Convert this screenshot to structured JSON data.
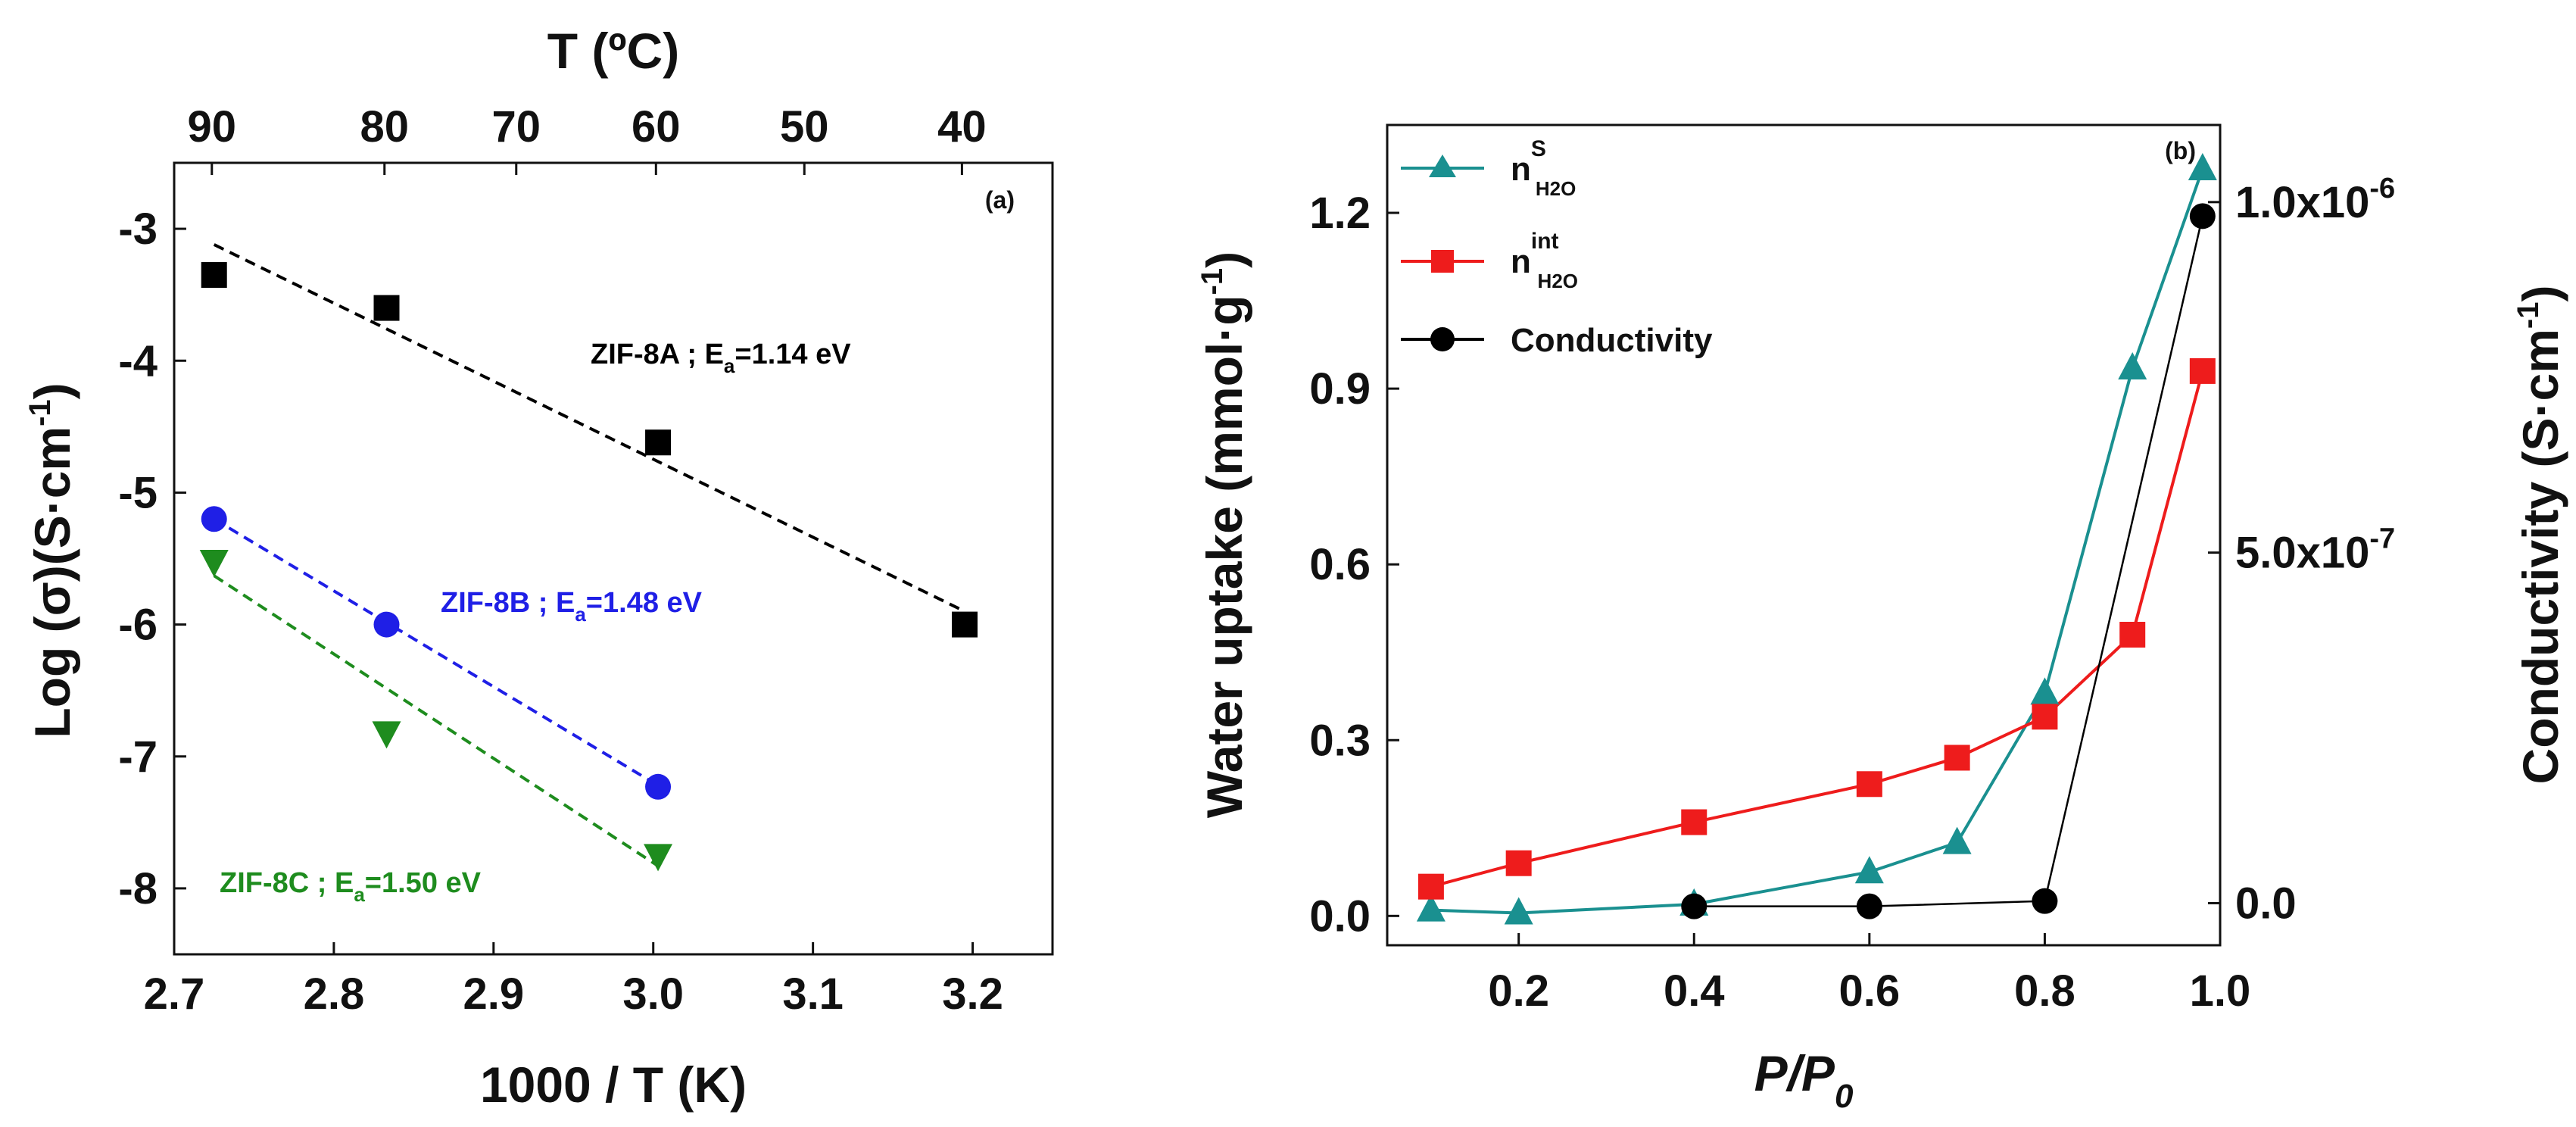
{
  "chart_data": [
    {
      "type": "scatter",
      "panel_label": "(a)",
      "xlabel": "1000 / T (K)",
      "ylabel": "Log (σ)(S·cm",
      "ylabel_sup": "-1",
      "ylabel_close": ")",
      "top_xlabel": "T (ºC)",
      "xlim": [
        2.7,
        3.25
      ],
      "ylim": [
        -8.5,
        -2.5
      ],
      "xticks": [
        2.7,
        2.8,
        2.9,
        3.0,
        3.1,
        3.2
      ],
      "xtick_labels": [
        "2.7",
        "2.8",
        "2.9",
        "3.0",
        "3.1",
        "3.2"
      ],
      "yticks": [
        -3,
        -4,
        -5,
        -6,
        -7,
        -8
      ],
      "ytick_labels": [
        "-3",
        "-4",
        "-5",
        "-6",
        "-7",
        "-8"
      ],
      "top_ticks": [
        {
          "label": "90",
          "x": 2.7236
        },
        {
          "label": "80",
          "x": 2.8317
        },
        {
          "label": "70",
          "x": 2.9142
        },
        {
          "label": "60",
          "x": 3.0017
        },
        {
          "label": "50",
          "x": 3.0946
        },
        {
          "label": "40",
          "x": 3.1933
        }
      ],
      "series": [
        {
          "name": "ZIF-8A",
          "label": "ZIF-8A ; E",
          "label_sub": "a",
          "label_value": "=1.14 eV",
          "color": "#000000",
          "marker": "square",
          "x": [
            2.725,
            2.833,
            3.003,
            3.195
          ],
          "y": [
            -3.35,
            -3.6,
            -4.62,
            -6.0
          ],
          "fit": {
            "x": [
              2.725,
              3.195
            ],
            "y": [
              -3.12,
              -5.9
            ]
          }
        },
        {
          "name": "ZIF-8B",
          "label": "ZIF-8B ; E",
          "label_sub": "a",
          "label_value": "=1.48 eV",
          "color": "#1f1fe6",
          "marker": "circle",
          "x": [
            2.725,
            2.833,
            3.003
          ],
          "y": [
            -5.2,
            -6.0,
            -7.23
          ],
          "fit": {
            "x": [
              2.725,
              3.003
            ],
            "y": [
              -5.2,
              -7.22
            ]
          }
        },
        {
          "name": "ZIF-8C",
          "label": "ZIF-8C ; E",
          "label_sub": "a",
          "label_value": "=1.50 eV",
          "color": "#1e8c1e",
          "marker": "triangle-down",
          "x": [
            2.725,
            2.833,
            3.003
          ],
          "y": [
            -5.52,
            -6.82,
            -7.75
          ],
          "fit": {
            "x": [
              2.725,
              3.003
            ],
            "y": [
              -5.63,
              -7.83
            ]
          }
        }
      ]
    },
    {
      "type": "line",
      "panel_label": "(b)",
      "xlabel": "P/P",
      "xlabel_sub": "0",
      "ylabel": "Water uptake (mmol·g",
      "ylabel_sup": "-1",
      "ylabel_close": ")",
      "y2label": "Conductivity (S·cm",
      "y2label_sup": "-1",
      "y2label_close": ")",
      "xlim": [
        0.05,
        1.0
      ],
      "ylim": [
        -0.05,
        1.35
      ],
      "y2lim": [
        -6e-08,
        1.11e-06
      ],
      "xticks": [
        0.2,
        0.4,
        0.6,
        0.8,
        1.0
      ],
      "xtick_labels": [
        "0.2",
        "0.4",
        "0.6",
        "0.8",
        "1.0"
      ],
      "yticks": [
        0.0,
        0.3,
        0.6,
        0.9,
        1.2
      ],
      "ytick_labels": [
        "0.0",
        "0.3",
        "0.6",
        "0.9",
        "1.2"
      ],
      "y2ticks": [
        {
          "value": 0.0,
          "base": "0.0",
          "exp": ""
        },
        {
          "value": 5e-07,
          "base": "5.0x10",
          "exp": "-7"
        },
        {
          "value": 1e-06,
          "base": "1.0x10",
          "exp": "-6"
        }
      ],
      "series": [
        {
          "name": "n_H2O_S",
          "legend_base": "n",
          "legend_sup": "S",
          "legend_sub": "H2O",
          "color": "#1a9090",
          "marker": "triangle-up",
          "axis": "left",
          "x": [
            0.1,
            0.2,
            0.4,
            0.6,
            0.7,
            0.8,
            0.9,
            0.98
          ],
          "y": [
            0.01,
            0.005,
            0.02,
            0.075,
            0.125,
            0.38,
            0.935,
            1.275
          ]
        },
        {
          "name": "n_H2O_int",
          "legend_base": "n",
          "legend_sup": "int",
          "legend_sub": "H2O",
          "color": "#ee1c1c",
          "marker": "square",
          "axis": "left",
          "x": [
            0.1,
            0.2,
            0.4,
            0.6,
            0.7,
            0.8,
            0.9,
            0.98
          ],
          "y": [
            0.05,
            0.09,
            0.16,
            0.225,
            0.27,
            0.34,
            0.48,
            0.93
          ]
        },
        {
          "name": "Conductivity",
          "legend_base": "Conductivity",
          "legend_sup": "",
          "legend_sub": "",
          "color": "#000000",
          "marker": "circle",
          "axis": "right",
          "x": [
            0.4,
            0.6,
            0.8,
            0.98
          ],
          "y": [
            -4.5e-09,
            -4.5e-09,
            3e-09,
            9.8e-07
          ]
        }
      ]
    }
  ]
}
